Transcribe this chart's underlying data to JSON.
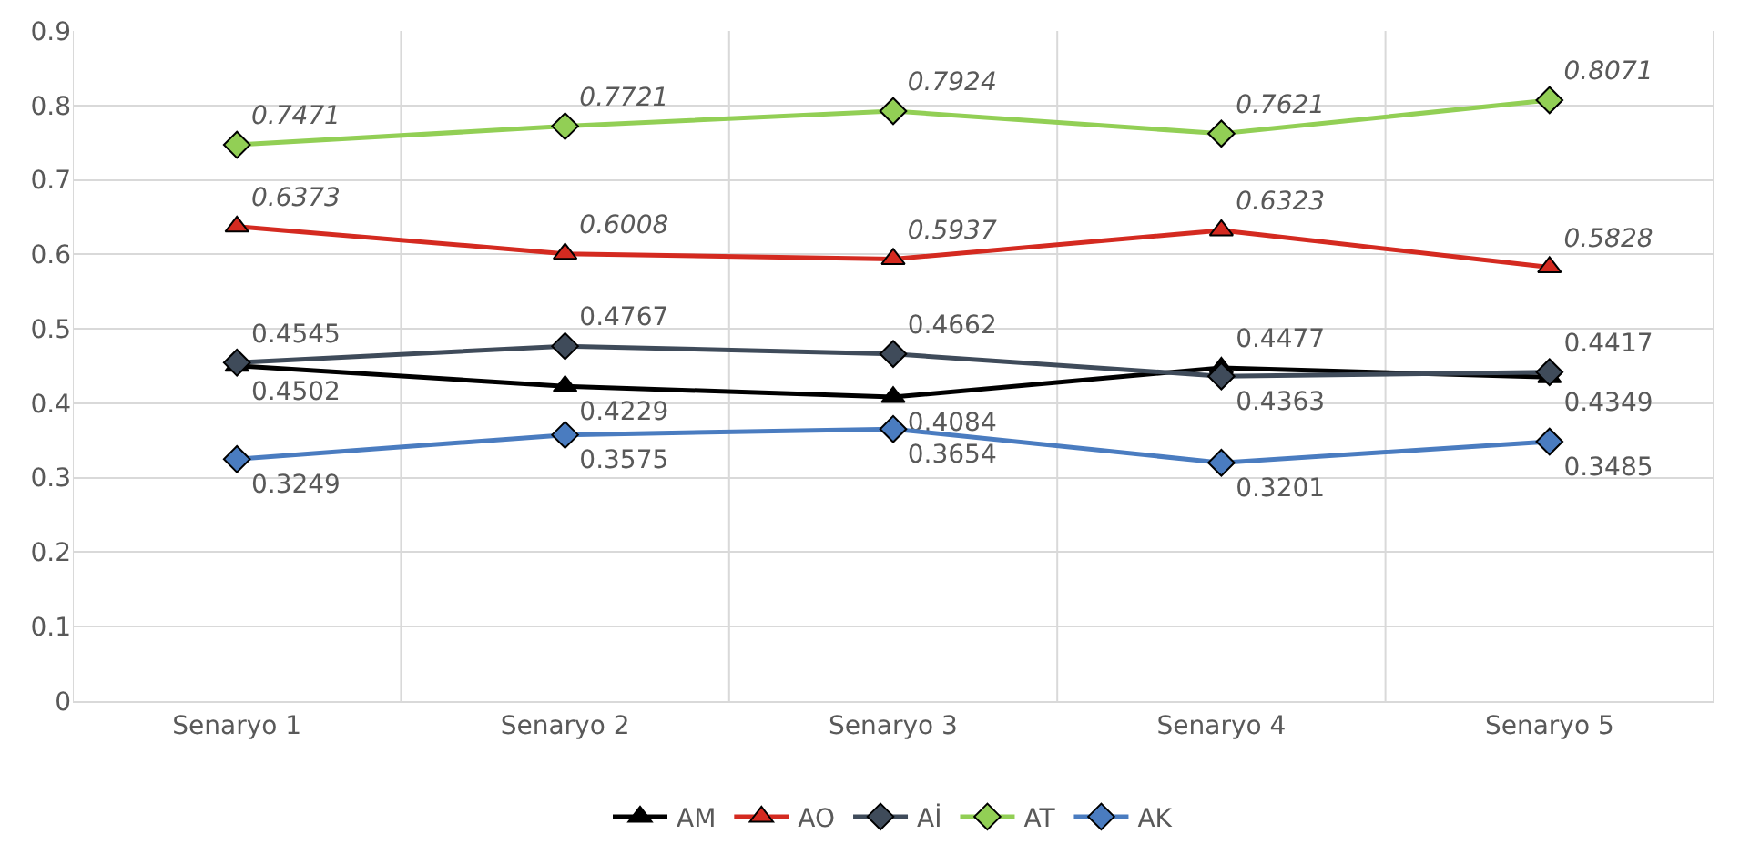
{
  "chart_data": {
    "type": "line",
    "categories": [
      "Senaryo 1",
      "Senaryo 2",
      "Senaryo 3",
      "Senaryo 4",
      "Senaryo 5"
    ],
    "series": [
      {
        "name": "AM",
        "color": "#000000",
        "marker": "triangle",
        "values": [
          0.4502,
          0.4229,
          0.4084,
          0.4477,
          0.4349
        ]
      },
      {
        "name": "AO",
        "color": "#d42a20",
        "marker": "triangle",
        "values": [
          0.6373,
          0.6008,
          0.5937,
          0.6323,
          0.5828
        ]
      },
      {
        "name": "Aİ",
        "color": "#3f4b5a",
        "marker": "diamond",
        "values": [
          0.4545,
          0.4767,
          0.4662,
          0.4363,
          0.4417
        ]
      },
      {
        "name": "AT",
        "color": "#92cf55",
        "marker": "diamond",
        "values": [
          0.7471,
          0.7721,
          0.7924,
          0.7621,
          0.8071
        ]
      },
      {
        "name": "AK",
        "color": "#4a7cc0",
        "marker": "diamond",
        "values": [
          0.3249,
          0.3575,
          0.3654,
          0.3201,
          0.3485
        ]
      }
    ],
    "ylim": [
      0,
      0.9
    ],
    "yticks": [
      0,
      0.1,
      0.2,
      0.3,
      0.4,
      0.5,
      0.6,
      0.7,
      0.8,
      0.9
    ],
    "grid": true,
    "legend": "bottom",
    "data_labels": true
  }
}
